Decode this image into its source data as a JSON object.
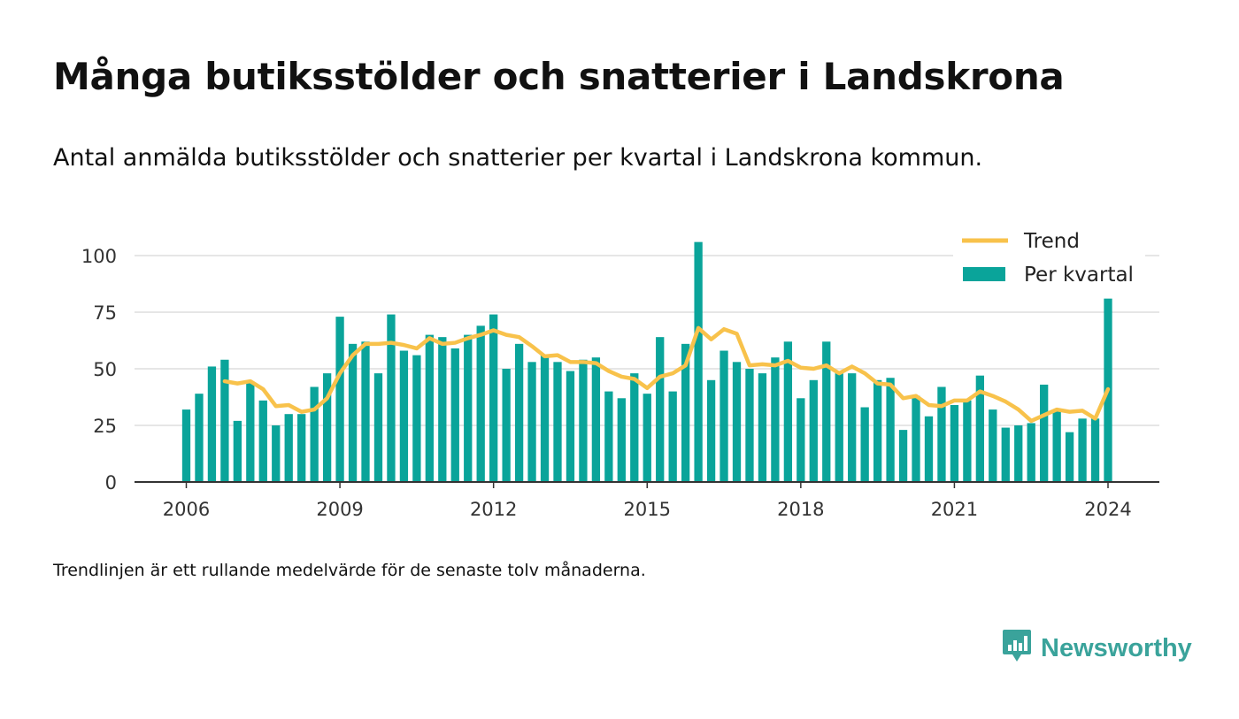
{
  "title": "Många butiksstölder och snatterier i Landskrona",
  "subtitle": "Antal anmälda butiksstölder och snatterier per kvartal i Landskrona kommun.",
  "footnote": "Trendlinjen är ett rullande medelvärde för de senaste tolv månaderna.",
  "logo": {
    "text": "Newsworthy",
    "icon": "newsworthy-chart-icon"
  },
  "colors": {
    "bar": "#0aa49a",
    "trend": "#f8c24b",
    "grid": "#dddddd",
    "axis": "#333333",
    "logo": "#3aa39b"
  },
  "chart_data": {
    "type": "bar",
    "x_ticks": [
      "2006",
      "2009",
      "2012",
      "2015",
      "2018",
      "2021",
      "2024"
    ],
    "y_ticks": [
      "0",
      "25",
      "50",
      "75",
      "100"
    ],
    "ylim": [
      0,
      110
    ],
    "grid": true,
    "legend_position": "top-right",
    "series": [
      {
        "name": "Per kvartal",
        "kind": "bar",
        "values": [
          32,
          39,
          51,
          54,
          27,
          44,
          36,
          25,
          30,
          30,
          42,
          48,
          73,
          61,
          62,
          48,
          74,
          58,
          56,
          65,
          64,
          59,
          65,
          69,
          74,
          50,
          61,
          53,
          56,
          53,
          49,
          54,
          55,
          40,
          37,
          48,
          39,
          64,
          40,
          61,
          106,
          45,
          58,
          53,
          50,
          48,
          55,
          62,
          37,
          45,
          62,
          48,
          48,
          33,
          45,
          46,
          23,
          38,
          29,
          42,
          34,
          36,
          47,
          32,
          24,
          25,
          26,
          43,
          32,
          22,
          28,
          28,
          81
        ],
        "x_start": "2006-Q1"
      },
      {
        "name": "Trend",
        "kind": "line",
        "values": [
          44.5,
          43.5,
          44.5,
          41,
          33.5,
          34,
          31,
          32,
          37,
          48,
          56,
          61,
          61,
          61.5,
          60.5,
          59,
          63.5,
          61,
          61.5,
          63.5,
          65,
          67,
          65,
          64,
          60,
          55.5,
          56,
          53,
          53,
          52.5,
          49,
          46.5,
          45.5,
          41.5,
          46.5,
          48,
          51.5,
          68,
          63,
          67.5,
          65.5,
          51.5,
          52,
          51.5,
          53.5,
          50.5,
          50,
          51.5,
          48,
          51,
          48,
          43.5,
          43,
          37,
          38,
          34,
          33.5,
          36,
          36,
          40,
          38,
          35.5,
          32,
          27,
          29.5,
          32,
          31,
          31.5,
          28,
          41
        ],
        "x_start": "2006-Q4"
      }
    ]
  }
}
